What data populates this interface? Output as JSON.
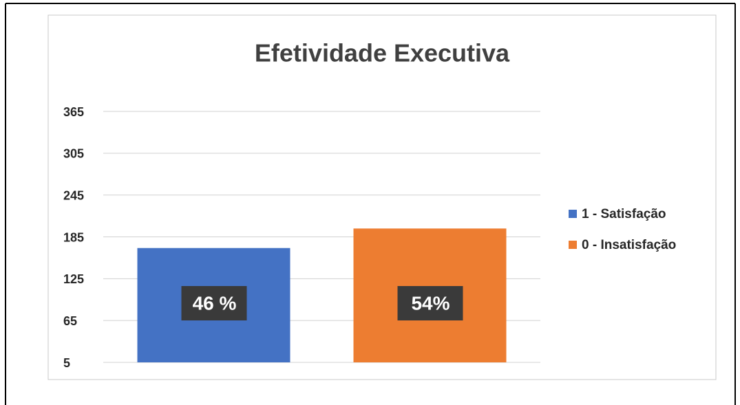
{
  "chart_data": {
    "type": "bar",
    "title": "Efetividade Executiva",
    "categories": [
      null
    ],
    "series": [
      {
        "name": "1 - Satisfação",
        "color": "#4472c4",
        "values": [
          169
        ]
      },
      {
        "name": "0 - Insatisfação",
        "color": "#ed7d31",
        "values": [
          197
        ]
      }
    ],
    "annotations": [
      "46 %",
      "54%"
    ],
    "ylim": [
      5,
      365
    ],
    "yticks": [
      5,
      65,
      125,
      185,
      245,
      305,
      365
    ],
    "grid": true,
    "legend": "right"
  }
}
